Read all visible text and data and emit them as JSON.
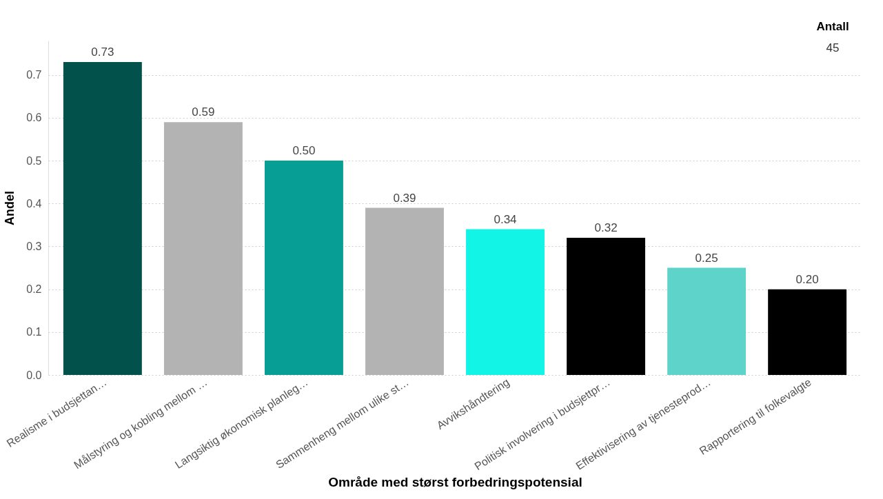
{
  "chart_data": {
    "type": "bar",
    "xlabel": "Område med størst forbedringspotensial",
    "ylabel": "Andel",
    "categories": [
      "Realisme i budsjettan…",
      "Målstyring og kobling mellom …",
      "Langsiktig økonomisk planleg…",
      "Sammenheng mellom ulike st…",
      "Avvikshåndtering",
      "Politisk involvering i budsjettpr…",
      "Effektivisering av tjenesteprod…",
      "Rapportering til folkevalgte"
    ],
    "values": [
      0.73,
      0.59,
      0.5,
      0.39,
      0.34,
      0.32,
      0.25,
      0.2
    ],
    "value_labels": [
      "0.73",
      "0.59",
      "0.50",
      "0.39",
      "0.34",
      "0.32",
      "0.25",
      "0.20"
    ],
    "colors": [
      "#02514a",
      "#b3b3b3",
      "#079f95",
      "#b3b3b3",
      "#12f4e5",
      "#000000",
      "#5dd3ca",
      "#000000"
    ],
    "ylim": [
      0,
      0.78
    ],
    "yticks": [
      {
        "value": 0,
        "label": "0.0"
      },
      0.1,
      0.2,
      0.3,
      0.4,
      0.5,
      0.6,
      0.7
    ],
    "grid": "y",
    "annotations": [
      "Antall",
      "45"
    ]
  }
}
